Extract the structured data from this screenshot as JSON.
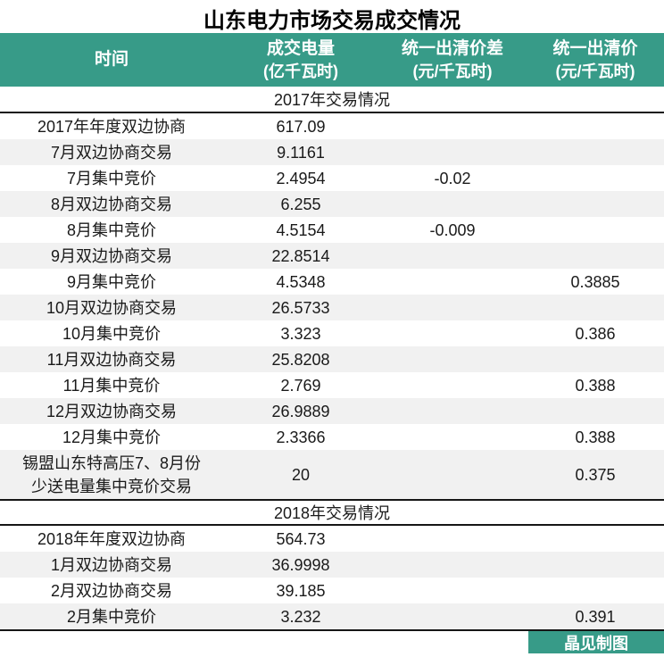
{
  "title": "山东电力市场交易成交情况",
  "colors": {
    "teal": "#379b88",
    "row_alt": "#f1f1f1",
    "line": "#161616"
  },
  "table": {
    "columns": [
      {
        "label": "时间",
        "sub": ""
      },
      {
        "label": "成交电量",
        "sub": "(亿千瓦时)"
      },
      {
        "label": "统一出清价差",
        "sub": "(元/千瓦时)"
      },
      {
        "label": "统一出清价",
        "sub": "(元/千瓦时)"
      }
    ],
    "sections": [
      {
        "header": "2017年交易情况",
        "rows": [
          {
            "time": "2017年年度双边协商",
            "volume": "617.09",
            "price_diff": "",
            "price": ""
          },
          {
            "time": "7月双边协商交易",
            "volume": "9.1161",
            "price_diff": "",
            "price": ""
          },
          {
            "time": "7月集中竞价",
            "volume": "2.4954",
            "price_diff": "-0.02",
            "price": ""
          },
          {
            "time": "8月双边协商交易",
            "volume": "6.255",
            "price_diff": "",
            "price": ""
          },
          {
            "time": "8月集中竞价",
            "volume": "4.5154",
            "price_diff": "-0.009",
            "price": ""
          },
          {
            "time": "9月双边协商交易",
            "volume": "22.8514",
            "price_diff": "",
            "price": ""
          },
          {
            "time": "9月集中竞价",
            "volume": "4.5348",
            "price_diff": "",
            "price": "0.3885"
          },
          {
            "time": "10月双边协商交易",
            "volume": "26.5733",
            "price_diff": "",
            "price": ""
          },
          {
            "time": "10月集中竞价",
            "volume": "3.323",
            "price_diff": "",
            "price": "0.386"
          },
          {
            "time": "11月双边协商交易",
            "volume": "25.8208",
            "price_diff": "",
            "price": ""
          },
          {
            "time": "11月集中竞价",
            "volume": "2.769",
            "price_diff": "",
            "price": "0.388"
          },
          {
            "time": "12月双边协商交易",
            "volume": "26.9889",
            "price_diff": "",
            "price": ""
          },
          {
            "time": "12月集中竞价",
            "volume": "2.3366",
            "price_diff": "",
            "price": "0.388"
          },
          {
            "time": "锡盟山东特高压7、8月份\n少送电量集中竞价交易",
            "volume": "20",
            "price_diff": "",
            "price": "0.375"
          }
        ]
      },
      {
        "header": "2018年交易情况",
        "rows": [
          {
            "time": "2018年年度双边协商",
            "volume": "564.73",
            "price_diff": "",
            "price": ""
          },
          {
            "time": "1月双边协商交易",
            "volume": "36.9998",
            "price_diff": "",
            "price": ""
          },
          {
            "time": "2月双边协商交易",
            "volume": "39.185",
            "price_diff": "",
            "price": ""
          },
          {
            "time": "2月集中竞价",
            "volume": "3.232",
            "price_diff": "",
            "price": "0.391"
          }
        ]
      }
    ]
  },
  "footer": {
    "credit": "晶见制图"
  }
}
